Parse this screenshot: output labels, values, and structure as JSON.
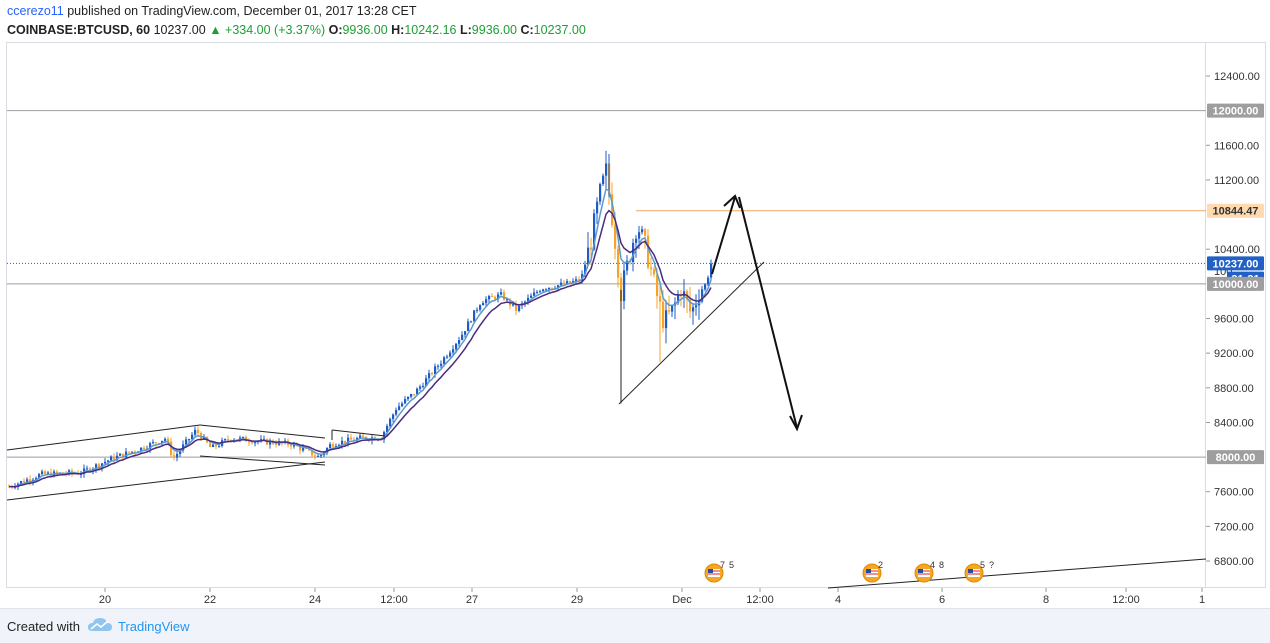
{
  "header": {
    "publisher": "ccerezo11",
    "published_text": " published on TradingView.com, December 01, 2017 13:28 CET",
    "symbol": "COINBASE:BTCUSD, 60",
    "last": "10237.00",
    "change": "▲ +334.00 (+3.37%)",
    "o_label": "O:",
    "o_value": "9936.00",
    "h_label": "H:",
    "h_value": "10242.16",
    "l_label": "L:",
    "l_value": "9936.00",
    "c_label": "C:",
    "c_value": "10237.00"
  },
  "price_axis": {
    "ticks": [
      "12400.00",
      "11600.00",
      "11200.00",
      "10400.00",
      "9600.00",
      "9200.00",
      "8800.00",
      "8400.00",
      "7600.00",
      "7200.00",
      "6800.00"
    ],
    "tick_values": [
      12400,
      11600,
      11200,
      10400,
      9600,
      9200,
      8800,
      8400,
      7600,
      7200,
      6800
    ],
    "partial_tick": "100",
    "labels": [
      {
        "text": "12000.00",
        "price": 12000,
        "bg": "#9e9e9e",
        "fg": "#ffffff"
      },
      {
        "text": "10844.47",
        "price": 10844.47,
        "bg": "#ffd9b0",
        "fg": "#333333"
      },
      {
        "text": "10237.00",
        "price": 10237,
        "bg": "#2160c4",
        "fg": "#ffffff"
      },
      {
        "text": "31:31",
        "price": 10060,
        "bg": "#2160c4",
        "fg": "#ffffff"
      },
      {
        "text": "10000.00",
        "price": 10000,
        "bg": "#9e9e9e",
        "fg": "#ffffff"
      },
      {
        "text": "8000.00",
        "price": 8000,
        "bg": "#9e9e9e",
        "fg": "#ffffff"
      }
    ]
  },
  "time_axis": {
    "labels": [
      "20",
      "22",
      "24",
      "12:00",
      "27",
      "29",
      "Dec",
      "12:00",
      "4",
      "6",
      "8",
      "12:00",
      "1"
    ]
  },
  "levels": {
    "resistance_12000": 12000,
    "orange_level": 10844.47,
    "last_price": 10237,
    "support_10000": 10000,
    "support_8000": 8000
  },
  "event_markers": [
    {
      "top": "7",
      "bottom": "5"
    },
    {
      "top": "2",
      "bottom": ""
    },
    {
      "top": "4",
      "bottom": "8"
    },
    {
      "top": "5",
      "bottom": "?"
    }
  ],
  "colors": {
    "candle_up": "#1e5bc6",
    "candle_down": "#f7a32a",
    "ma_fast": "#5b9bc9",
    "ma_slow": "#4b2a80",
    "orange_level": "#f0a660",
    "last_line": "#2160c4",
    "gray_level": "#9e9e9e"
  },
  "footer": {
    "created_with": "Created with",
    "brand": "TradingView"
  }
}
